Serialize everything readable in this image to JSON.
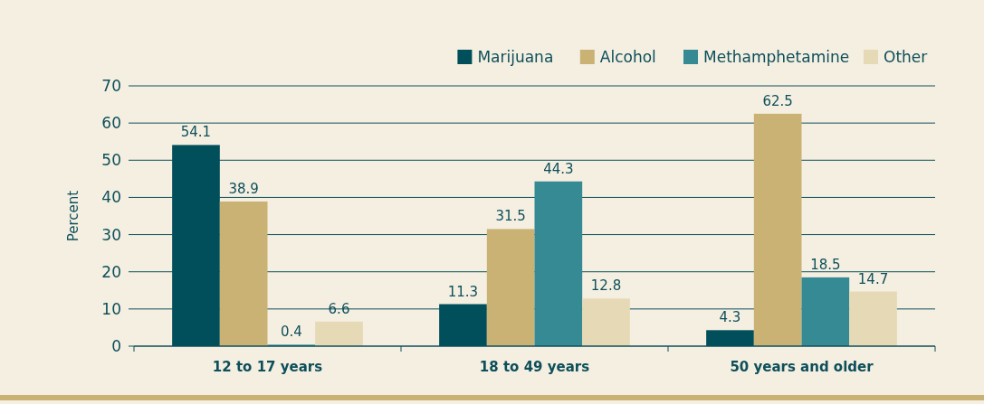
{
  "chart_data": {
    "type": "bar",
    "ylabel": "Percent",
    "categories": [
      "12 to 17 years",
      "18 to 49 years",
      "50 years and older"
    ],
    "series": [
      {
        "name": "Marijuana",
        "color": "#004f5a",
        "values": [
          54.1,
          11.3,
          4.3
        ]
      },
      {
        "name": "Alcohol",
        "color": "#c9b273",
        "values": [
          38.9,
          31.5,
          62.5
        ]
      },
      {
        "name": "Methamphetamine",
        "color": "#358a93",
        "values": [
          0.4,
          44.3,
          18.5
        ]
      },
      {
        "name": "Other",
        "color": "#e6d9b6",
        "values": [
          6.6,
          12.8,
          14.7
        ]
      }
    ],
    "ylim": [
      0,
      70
    ],
    "yticks": [
      0,
      10,
      20,
      30,
      40,
      50,
      60,
      70
    ],
    "grid": "y",
    "legend": "top right",
    "data_labels": true
  }
}
